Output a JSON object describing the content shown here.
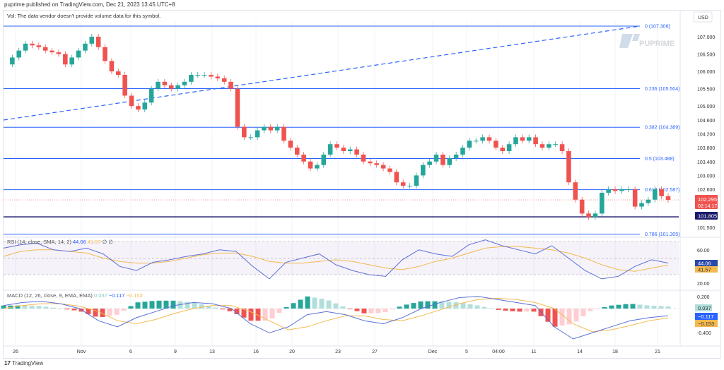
{
  "header": {
    "published": "puprime published on TradingView.com, Dec 21, 2023 13:45 UTC+8"
  },
  "volume_notice": "Vol: The data vendor doesn't provide volume data for this symbol.",
  "currency": "USD",
  "watermark": "PUPRIME",
  "footer_brand": {
    "mark": "17",
    "text": "TradingView"
  },
  "colors": {
    "up": "#26a69a",
    "down": "#ef5350",
    "fib": "#2962ff",
    "support": "#1c1a6b",
    "rsi": "#5b6fd6",
    "rsi_ma": "#f3b94f",
    "macd": "#5b6fd6",
    "signal": "#f3b94f"
  },
  "price_axis": {
    "ticks": [
      "107.000",
      "106.500",
      "106.000",
      "105.500",
      "105.000",
      "104.600",
      "104.200",
      "103.800",
      "103.400",
      "103.000",
      "102.600",
      "101.500"
    ],
    "tick_values": [
      107,
      106.5,
      106,
      105.5,
      105,
      104.6,
      104.2,
      103.8,
      103.4,
      103,
      102.6,
      101.5
    ]
  },
  "current_price": {
    "value": "102.295",
    "countdown": "02:14:17"
  },
  "support_level": {
    "label": "101.805",
    "value": 101.805
  },
  "fib_levels": [
    {
      "label": "0 (107.306)",
      "value": 107.306
    },
    {
      "label": "0.236 (105.504)",
      "value": 105.504
    },
    {
      "label": "0.382 (104.389)",
      "value": 104.389
    },
    {
      "label": "0.5 (103.488)",
      "value": 103.488
    },
    {
      "label": "0.618 (102.587)",
      "value": 102.587
    },
    {
      "label": "0.786 (101.305)",
      "value": 101.305
    }
  ],
  "time_axis": [
    "26",
    "Nov",
    "6",
    "9",
    "13",
    "16",
    "20",
    "23",
    "27",
    "Dec",
    "5",
    "04:00",
    "11",
    "14",
    "18",
    "21"
  ],
  "rsi": {
    "legend": "RSI (14, close, SMA, 14, 2)",
    "value": "44.06",
    "ma_value": "41.57",
    "extra": "∅ ∅",
    "ticks": [
      "60.00",
      "20.00"
    ]
  },
  "macd": {
    "legend": "MACD (12, 26, close, 9, EMA, EMA)",
    "hist": "0.037",
    "macd": "−0.117",
    "signal": "−0.153",
    "ticks": [
      "0.200",
      "-0.400"
    ]
  },
  "chart_data": {
    "type": "candlestick",
    "symbol_currency": "USD",
    "closes": [
      106.2,
      106.4,
      106.6,
      106.8,
      106.75,
      106.7,
      106.6,
      106.55,
      106.5,
      106.2,
      106.4,
      106.6,
      106.8,
      107.0,
      106.7,
      106.3,
      106.0,
      105.9,
      105.3,
      105.0,
      104.9,
      105.1,
      105.5,
      105.7,
      105.6,
      105.5,
      105.6,
      105.7,
      105.9,
      105.9,
      105.9,
      105.85,
      105.8,
      105.7,
      105.5,
      104.4,
      104.1,
      104.1,
      104.3,
      104.4,
      104.3,
      104.4,
      104.0,
      103.8,
      103.6,
      103.4,
      103.2,
      103.3,
      103.6,
      103.9,
      103.8,
      103.7,
      103.75,
      103.6,
      103.4,
      103.35,
      103.3,
      103.2,
      103.1,
      102.8,
      102.7,
      102.7,
      103.0,
      103.3,
      103.4,
      103.6,
      103.3,
      103.5,
      103.6,
      103.8,
      104.0,
      104.0,
      104.1,
      104.0,
      103.8,
      103.7,
      103.9,
      104.1,
      104.0,
      104.1,
      103.9,
      103.8,
      103.9,
      103.9,
      103.7,
      102.8,
      102.3,
      101.9,
      101.8,
      101.9,
      102.5,
      102.6,
      102.55,
      102.6,
      102.6,
      102.1,
      102.2,
      102.3,
      102.6,
      102.4,
      102.295
    ],
    "rsi": [
      62,
      66,
      68,
      60,
      58,
      62,
      55,
      40,
      35,
      45,
      48,
      52,
      55,
      60,
      58,
      40,
      25,
      45,
      50,
      55,
      42,
      35,
      30,
      28,
      48,
      60,
      55,
      52,
      66,
      72,
      65,
      60,
      55,
      65,
      50,
      35,
      25,
      28,
      40,
      48,
      44.06
    ],
    "rsi_ma": [
      52,
      58,
      60,
      60,
      58,
      56,
      50,
      46,
      44,
      44,
      46,
      50,
      54,
      56,
      56,
      52,
      46,
      44,
      44,
      46,
      48,
      46,
      42,
      38,
      36,
      40,
      46,
      50,
      56,
      62,
      64,
      64,
      62,
      60,
      56,
      50,
      42,
      36,
      34,
      38,
      41.57
    ],
    "macd": [
      0.05,
      0.1,
      0.12,
      0.08,
      0.0,
      -0.2,
      -0.3,
      -0.15,
      -0.05,
      0.05,
      0.1,
      0.08,
      0.0,
      -0.25,
      -0.4,
      -0.3,
      -0.1,
      -0.05,
      -0.1,
      -0.2,
      -0.25,
      -0.15,
      0.0,
      0.1,
      0.18,
      0.2,
      0.15,
      0.1,
      0.05,
      -0.3,
      -0.5,
      -0.4,
      -0.3,
      -0.2,
      -0.15,
      -0.117
    ],
    "signal": [
      0.0,
      0.05,
      0.08,
      0.08,
      0.04,
      -0.05,
      -0.2,
      -0.25,
      -0.18,
      -0.08,
      0.0,
      0.05,
      0.05,
      -0.05,
      -0.2,
      -0.35,
      -0.3,
      -0.2,
      -0.12,
      -0.12,
      -0.18,
      -0.2,
      -0.12,
      -0.02,
      0.08,
      0.15,
      0.17,
      0.15,
      0.1,
      0.0,
      -0.25,
      -0.38,
      -0.35,
      -0.28,
      -0.2,
      -0.153
    ]
  }
}
